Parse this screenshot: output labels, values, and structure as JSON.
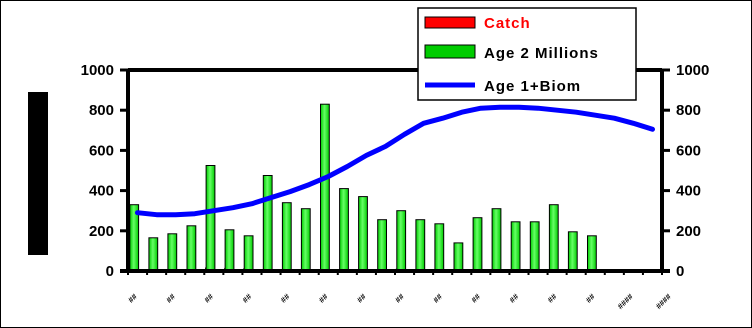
{
  "chart_data": {
    "type": "bar",
    "title": "",
    "xlabel": "",
    "ylabel": "",
    "ylim": [
      0,
      1000
    ],
    "y2lim": [
      0,
      1000
    ],
    "yticks": [
      0,
      200,
      400,
      600,
      800,
      1000
    ],
    "grid": false,
    "legend_position": "top-right",
    "categories": [
      "",
      "",
      "",
      "",
      "",
      "",
      "",
      "",
      "",
      "",
      "",
      "",
      "",
      "",
      "",
      "",
      "",
      "",
      "",
      "",
      "",
      "",
      "",
      "",
      "",
      "",
      "",
      ""
    ],
    "x_tick_labels": [
      "##",
      "##",
      "##",
      "##",
      "##",
      "##",
      "##",
      "##",
      "##",
      "##",
      "##",
      "##",
      "##",
      "####",
      "####"
    ],
    "series": [
      {
        "name": "Catch",
        "kind": "bar",
        "axis": "left",
        "color": "#ff0000",
        "values": [
          12,
          6,
          6,
          6,
          16,
          14,
          12,
          6,
          6,
          6,
          6,
          6,
          6,
          6,
          10,
          6,
          6,
          6,
          6,
          6,
          6,
          6,
          6,
          6,
          6,
          6,
          6,
          6
        ]
      },
      {
        "name": "Age 2 Millions",
        "kind": "bar",
        "axis": "left",
        "color": "#00cc00",
        "values": [
          330,
          165,
          185,
          225,
          525,
          205,
          175,
          475,
          340,
          310,
          830,
          410,
          370,
          255,
          300,
          255,
          235,
          140,
          265,
          310,
          245,
          245,
          330,
          195,
          175,
          0,
          0,
          0
        ]
      },
      {
        "name": "Age 1+Biom",
        "kind": "line",
        "axis": "right",
        "color": "#0000ff",
        "values": [
          290,
          280,
          280,
          285,
          300,
          315,
          335,
          365,
          395,
          430,
          470,
          520,
          575,
          620,
          680,
          735,
          760,
          790,
          810,
          815,
          815,
          810,
          800,
          790,
          775,
          760,
          735,
          705
        ]
      }
    ]
  },
  "colors": {
    "catch_bar": "#ff0000",
    "age2_bar": "#00cc00",
    "age2_bar_highlight": "#66ff66",
    "biomass_line": "#0000ff"
  }
}
